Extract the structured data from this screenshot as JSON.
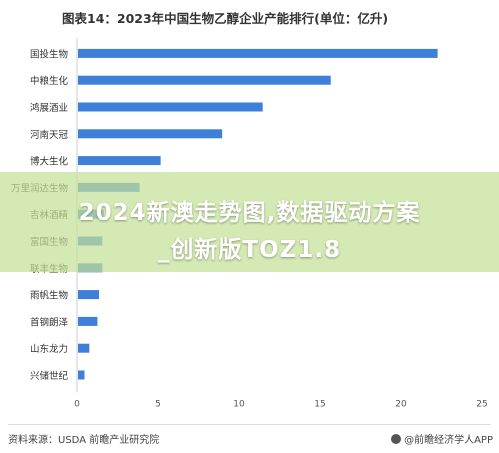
{
  "title": "图表14：2023年中国生物乙醇企业产能排行(单位：亿升)",
  "banner": {
    "line1": "2024新澳走势图,数据驱动方案",
    "line2": "_创新版TOZ1.8"
  },
  "footer": {
    "source": "资料来源：USDA 前瞻产业研究院",
    "brand": "@前瞻经济学人APP"
  },
  "watermark": "前瞻产业研究院",
  "colors": {
    "bar": "#3d7fd9",
    "axis": "#cccccc",
    "grid": "#eeeeee",
    "text": "#333333"
  },
  "chart_data": {
    "type": "bar",
    "orientation": "horizontal",
    "categories": [
      "国投生物",
      "中粮生化",
      "鸿展酒业",
      "河南天冠",
      "博大生化",
      "万里润达生物",
      "吉林酒精",
      "富国生物",
      "联丰生物",
      "雨帆生物",
      "首钢朗泽",
      "山东龙力",
      "兴储世纪"
    ],
    "values": [
      22.2,
      15.6,
      11.4,
      8.9,
      5.1,
      3.8,
      1.6,
      1.5,
      1.5,
      1.3,
      1.2,
      0.7,
      0.4
    ],
    "xticks": [
      0,
      5,
      10,
      15,
      20,
      25
    ],
    "xlim": [
      0,
      25
    ],
    "grid": false
  }
}
